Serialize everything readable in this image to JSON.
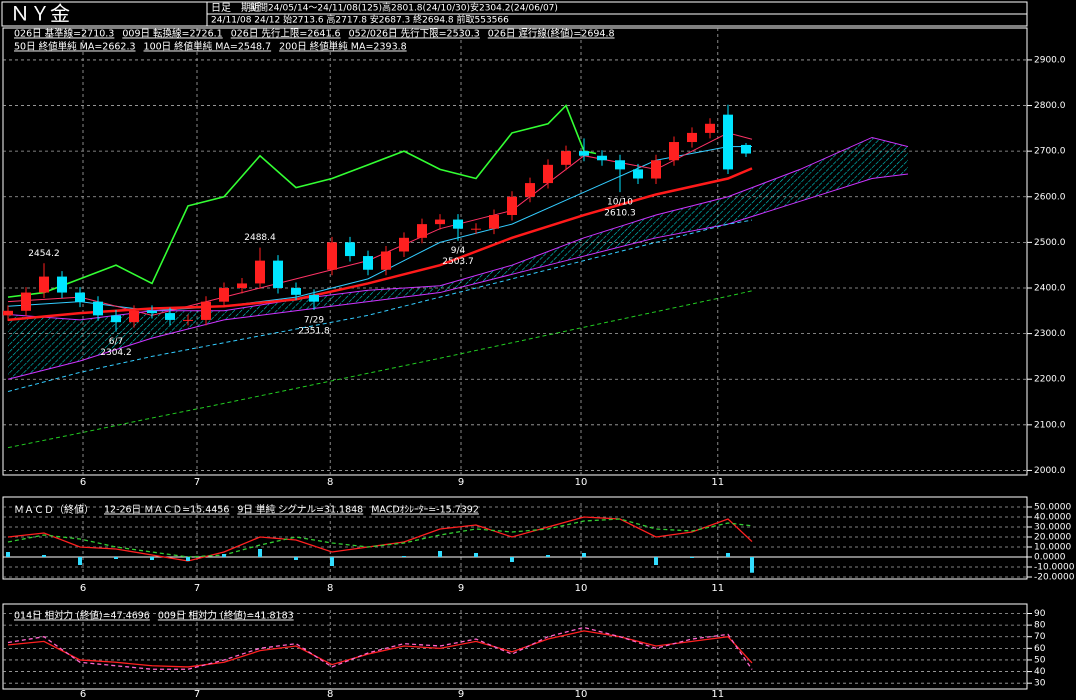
{
  "header": {
    "title": "ＮＹ金",
    "mode": "日足　期近",
    "period": "期間24/05/14～24/11/08(125)高2801.8(24/10/30)安2304.2(24/06/07)",
    "quote": "24/11/08 24/12 始2713.6 高2717.8 安2687.3 終2694.8 前取553566"
  },
  "chart_data": [
    {
      "type": "candlestick",
      "x": [
        0,
        3,
        6,
        9,
        12,
        15,
        18,
        21,
        24,
        27,
        30,
        33,
        36,
        39,
        42,
        45,
        48,
        51,
        54,
        57,
        60,
        63,
        66,
        69,
        72,
        75,
        78,
        81,
        84,
        87,
        90,
        93,
        96,
        99,
        102,
        105,
        108,
        111,
        114,
        117,
        120,
        123
      ],
      "open": [
        2340,
        2350,
        2390,
        2425,
        2390,
        2370,
        2340,
        2325,
        2350,
        2345,
        2330,
        2330,
        2370,
        2400,
        2410,
        2460,
        2400,
        2385,
        2440,
        2500,
        2470,
        2440,
        2480,
        2510,
        2540,
        2550,
        2530,
        2530,
        2560,
        2600,
        2630,
        2670,
        2700,
        2690,
        2680,
        2660,
        2640,
        2680,
        2720,
        2740,
        2780,
        2713.6
      ],
      "high": [
        2362,
        2402,
        2454.2,
        2437,
        2402,
        2382,
        2352,
        2362,
        2362,
        2357,
        2342,
        2382,
        2412,
        2422,
        2488.4,
        2472,
        2412,
        2397,
        2512,
        2512,
        2482,
        2492,
        2522,
        2552,
        2562,
        2562,
        2542,
        2572,
        2612,
        2642,
        2682,
        2712,
        2728,
        2702,
        2692,
        2672,
        2692,
        2732,
        2752,
        2772,
        2801.8,
        2717.8
      ],
      "low": [
        2328,
        2338,
        2378,
        2378,
        2358,
        2328,
        2304.2,
        2313,
        2333,
        2318,
        2318,
        2318,
        2358,
        2388,
        2398,
        2388,
        2373,
        2351.8,
        2428,
        2458,
        2428,
        2428,
        2468,
        2498,
        2528,
        2503.7,
        2518,
        2518,
        2548,
        2588,
        2618,
        2658,
        2678,
        2668,
        2610.3,
        2628,
        2628,
        2668,
        2708,
        2728,
        2650,
        2687.3
      ],
      "close": [
        2350,
        2390,
        2425,
        2390,
        2370,
        2340,
        2325,
        2350,
        2345,
        2330,
        2330,
        2370,
        2400,
        2410,
        2460,
        2400,
        2385,
        2370,
        2500,
        2470,
        2440,
        2480,
        2510,
        2540,
        2550,
        2530,
        2530,
        2560,
        2600,
        2630,
        2670,
        2700,
        2690,
        2680,
        2660,
        2640,
        2680,
        2720,
        2740,
        2760,
        2660,
        2694.8
      ],
      "up_color": "#ff2020",
      "down_color": "#00e5ff",
      "cloud_fill": "#00cccc",
      "series": [
        {
          "name": "026日 基準線=2710.3",
          "color": "#33ccff",
          "width": 1,
          "x": [
            0,
            12,
            24,
            36,
            48,
            60,
            72,
            84,
            96,
            108,
            120,
            124
          ],
          "values": [
            2360,
            2370,
            2350,
            2360,
            2380,
            2420,
            2500,
            2540,
            2610,
            2680,
            2710,
            2710.3
          ]
        },
        {
          "name": "009日 転換線=2726.1",
          "color": "#ff3366",
          "width": 1,
          "x": [
            0,
            12,
            24,
            36,
            48,
            60,
            72,
            84,
            96,
            108,
            120,
            124
          ],
          "values": [
            2370,
            2380,
            2340,
            2380,
            2420,
            2460,
            2530,
            2570,
            2690,
            2660,
            2740,
            2726.1
          ]
        },
        {
          "name": "026日 先行上限=2641.6",
          "color": "#cc33ff",
          "width": 1,
          "cloud": "upper",
          "x": [
            0,
            12,
            24,
            36,
            48,
            60,
            72,
            84,
            96,
            108,
            120,
            132,
            144,
            150
          ],
          "values": [
            2342,
            2330,
            2350,
            2350,
            2375,
            2395,
            2405,
            2450,
            2510,
            2560,
            2600,
            2660,
            2730,
            2710
          ]
        },
        {
          "name": "052/026日 先行下限=2530.3",
          "color": "#cc33ff",
          "width": 1,
          "cloud": "lower",
          "x": [
            0,
            12,
            24,
            36,
            48,
            60,
            72,
            84,
            96,
            108,
            120,
            132,
            144,
            150
          ],
          "values": [
            2200,
            2240,
            2290,
            2330,
            2350,
            2370,
            2390,
            2430,
            2470,
            2510,
            2540,
            2590,
            2640,
            2650
          ]
        },
        {
          "name": "026日 遅行線(終値)=2694.8",
          "color": "#33ff33",
          "width": 1.6,
          "x": [
            0,
            6,
            12,
            18,
            24,
            30,
            36,
            42,
            48,
            54,
            60,
            66,
            72,
            78,
            84,
            90,
            93,
            96,
            98
          ],
          "values": [
            2380,
            2390,
            2420,
            2450,
            2410,
            2580,
            2600,
            2690,
            2620,
            2640,
            2670,
            2700,
            2660,
            2640,
            2740,
            2760,
            2800,
            2700,
            2694.8
          ]
        },
        {
          "name": "50日 終値単純 MA=2662.3",
          "color": "#ff1a1a",
          "width": 2.5,
          "x": [
            0,
            12,
            24,
            36,
            48,
            60,
            72,
            84,
            96,
            108,
            120,
            124
          ],
          "values": [
            2330,
            2345,
            2355,
            2360,
            2375,
            2410,
            2450,
            2510,
            2560,
            2605,
            2640,
            2662.3
          ]
        },
        {
          "name": "100日 終値単純 MA=2548.7",
          "color": "#33ccff",
          "width": 1,
          "dash": true,
          "x": [
            0,
            12,
            24,
            36,
            48,
            60,
            72,
            84,
            96,
            108,
            120,
            124
          ],
          "values": [
            2173,
            2215,
            2250,
            2280,
            2310,
            2340,
            2380,
            2420,
            2460,
            2500,
            2540,
            2548.7
          ]
        },
        {
          "name": "200日 終値単純 MA=2393.8",
          "color": "#22cc22",
          "width": 1,
          "dash": true,
          "x": [
            0,
            12,
            24,
            36,
            48,
            60,
            72,
            84,
            96,
            108,
            120,
            124
          ],
          "values": [
            2050,
            2082,
            2115,
            2147,
            2180,
            2213,
            2246,
            2280,
            2314,
            2348,
            2382,
            2393.8
          ]
        }
      ],
      "annotations": [
        {
          "x": 6,
          "price": 2454.2,
          "position": "above"
        },
        {
          "x": 18,
          "date": "6/7",
          "price": 2304.2,
          "position": "below"
        },
        {
          "x": 42,
          "price": 2488.4,
          "position": "above"
        },
        {
          "x": 51,
          "date": "7/29",
          "price": 2351.8,
          "position": "below"
        },
        {
          "x": 75,
          "date": "9/4",
          "price": 2503.7,
          "position": "below"
        },
        {
          "x": 102,
          "date": "10/10",
          "price": 2610.3,
          "position": "below"
        }
      ],
      "xlim": [
        0,
        170
      ],
      "ylim": [
        1990,
        2970
      ],
      "xticks": [
        {
          "value": 12.5,
          "label": "6"
        },
        {
          "value": 31.5,
          "label": "7"
        },
        {
          "value": 53.7,
          "label": "8"
        },
        {
          "value": 75.5,
          "label": "9"
        },
        {
          "value": 95.5,
          "label": "10"
        },
        {
          "value": 118.3,
          "label": "11"
        }
      ],
      "yticks": [
        {
          "value": 2000,
          "label": "2000.0"
        },
        {
          "value": 2100,
          "label": "2100.0"
        },
        {
          "value": 2200,
          "label": "2200.0"
        },
        {
          "value": 2300,
          "label": "2300.0"
        },
        {
          "value": 2400,
          "label": "2400.0"
        },
        {
          "value": 2500,
          "label": "2500.0"
        },
        {
          "value": 2600,
          "label": "2600.0"
        },
        {
          "value": 2700,
          "label": "2700.0"
        },
        {
          "value": 2800,
          "label": "2800.0"
        },
        {
          "value": 2900,
          "label": "2900.0"
        }
      ],
      "grid": true
    },
    {
      "type": "macd",
      "title": "ＭＡＣＤ（終値）",
      "x": [
        0,
        6,
        12,
        18,
        24,
        30,
        36,
        42,
        48,
        54,
        60,
        66,
        72,
        78,
        84,
        90,
        96,
        102,
        108,
        114,
        120,
        124
      ],
      "series": [
        {
          "name": "12-26日 ＭＡＣＤ=15.4456",
          "color": "#ff2020",
          "kind": "line",
          "values": [
            20,
            24,
            10,
            8,
            2,
            -4,
            5,
            20,
            17,
            5,
            10,
            15,
            28,
            32,
            20,
            30,
            40,
            38,
            20,
            25,
            38,
            15.4456
          ]
        },
        {
          "name": "9日 単純 シグナル=31.1848",
          "color": "#33cc33",
          "kind": "line",
          "dash": true,
          "values": [
            15,
            22,
            18,
            10,
            5,
            0,
            2,
            12,
            20,
            14,
            10,
            14,
            22,
            28,
            25,
            28,
            36,
            38,
            28,
            26,
            34,
            31.1848
          ]
        },
        {
          "name": "MACDｵｼﾚｰﾀｰ=-15.7392",
          "color": "#33ddff",
          "kind": "bar",
          "values": [
            5,
            2,
            -8,
            -2,
            -3,
            -4,
            3,
            8,
            -3,
            -9,
            0,
            1,
            6,
            4,
            -5,
            2,
            4,
            0,
            -8,
            -1,
            4,
            -15.7392
          ]
        }
      ],
      "xlim": [
        0,
        170
      ],
      "ylim": [
        -22,
        54
      ],
      "xticks": [
        {
          "value": 12.5,
          "label": "6"
        },
        {
          "value": 31.5,
          "label": "7"
        },
        {
          "value": 53.7,
          "label": "8"
        },
        {
          "value": 75.5,
          "label": "9"
        },
        {
          "value": 95.5,
          "label": "10"
        },
        {
          "value": 118.3,
          "label": "11"
        }
      ],
      "yticks": [
        {
          "value": -20,
          "label": "-20.0000"
        },
        {
          "value": -10,
          "label": "-10.0000"
        },
        {
          "value": 0,
          "label": "0.0000"
        },
        {
          "value": 10,
          "label": "10.0000"
        },
        {
          "value": 20,
          "label": "20.0000"
        },
        {
          "value": 30,
          "label": "30.0000"
        },
        {
          "value": 40,
          "label": "40.0000"
        },
        {
          "value": 50,
          "label": "50.0000"
        }
      ],
      "grid": true
    },
    {
      "type": "rsi",
      "x": [
        0,
        6,
        12,
        18,
        24,
        30,
        36,
        42,
        48,
        54,
        60,
        66,
        72,
        78,
        84,
        90,
        96,
        102,
        108,
        114,
        120,
        124
      ],
      "series": [
        {
          "name": "014日 相対力 (終値)=47.4696",
          "color": "#ff2020",
          "kind": "line",
          "values": [
            63,
            66,
            50,
            48,
            45,
            44,
            48,
            58,
            62,
            46,
            55,
            62,
            60,
            66,
            57,
            68,
            75,
            70,
            62,
            66,
            70,
            47.4696
          ]
        },
        {
          "name": "009日 相対力 (終値)=41.8183",
          "color": "#ff66cc",
          "kind": "line",
          "dash": true,
          "values": [
            65,
            70,
            48,
            45,
            42,
            42,
            50,
            60,
            64,
            44,
            56,
            64,
            62,
            68,
            55,
            70,
            78,
            70,
            60,
            68,
            72,
            41.8183
          ]
        }
      ],
      "xlim": [
        0,
        170
      ],
      "ylim": [
        25,
        93
      ],
      "xticks": [
        {
          "value": 12.5,
          "label": "6"
        },
        {
          "value": 31.5,
          "label": "7"
        },
        {
          "value": 53.7,
          "label": "8"
        },
        {
          "value": 75.5,
          "label": "9"
        },
        {
          "value": 95.5,
          "label": "10"
        },
        {
          "value": 118.3,
          "label": "11"
        }
      ],
      "yticks": [
        30,
        40,
        50,
        60,
        70,
        80,
        90
      ],
      "grid": true
    }
  ]
}
